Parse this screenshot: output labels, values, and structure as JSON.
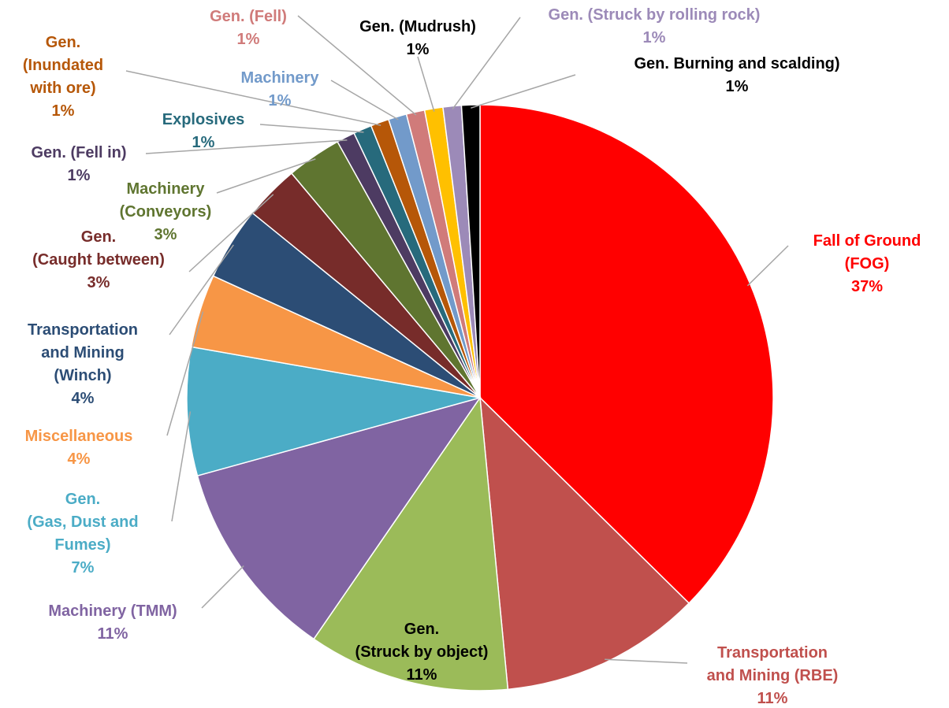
{
  "chart_data": {
    "type": "pie",
    "categories": [
      "Fall of Ground (FOG)",
      "Transportation and Mining (RBE)",
      "Gen. (Struck by object)",
      "Machinery (TMM)",
      "Gen. (Gas, Dust and Fumes)",
      "Miscellaneous",
      "Transportation and Mining (Winch)",
      "Gen. (Caught between)",
      "Machinery (Conveyors)",
      "Gen. (Fell in)",
      "Explosives",
      "Gen. (Inundated with ore)",
      "Machinery",
      "Gen. (Fell)",
      "Gen. (Mudrush)",
      "Gen. (Struck by rolling rock)",
      "Gen. Burning and scalding)"
    ],
    "values": [
      37,
      11,
      11,
      11,
      7,
      4,
      4,
      3,
      3,
      1,
      1,
      1,
      1,
      1,
      1,
      1,
      1
    ],
    "value_labels": [
      "37%",
      "11%",
      "11%",
      "11%",
      "7%",
      "4%",
      "4%",
      "3%",
      "3%",
      "1%",
      "1%",
      "1%",
      "1%",
      "1%",
      "1%",
      "1%",
      "1%"
    ],
    "colors": [
      "#ff0000",
      "#c0504d",
      "#9bbb59",
      "#8064a2",
      "#4bacc6",
      "#f79646",
      "#2c4d75",
      "#772c2a",
      "#5f7530",
      "#4d3b62",
      "#276a7c",
      "#b65708",
      "#729aca",
      "#d07b7a",
      "#ffc000",
      "#9c8ab8",
      "#000000"
    ],
    "label_colors": [
      "#ff0000",
      "#c0504d",
      "#000000",
      "#8064a2",
      "#4bacc6",
      "#f79646",
      "#2c4d75",
      "#772c2a",
      "#5f7530",
      "#4d3b62",
      "#276a7c",
      "#b65708",
      "#729aca",
      "#d07b7a",
      "#000000",
      "#9c8ab8",
      "#000000"
    ]
  }
}
